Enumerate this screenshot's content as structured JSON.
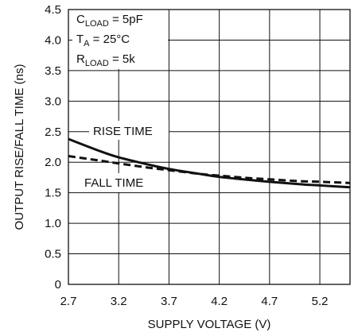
{
  "chart_data": {
    "type": "line",
    "xlabel": "SUPPLY VOLTAGE (V)",
    "ylabel": "OUTPUT RISE/FALL TIME (ns)",
    "xlim": [
      2.7,
      5.5
    ],
    "ylim": [
      0,
      4.5
    ],
    "xticks": [
      "2.7",
      "3.2",
      "3.7",
      "4.2",
      "4.7",
      "5.2"
    ],
    "yticks": [
      "0",
      "0.5",
      "1.0",
      "1.5",
      "2.0",
      "2.5",
      "3.0",
      "3.5",
      "4.0",
      "4.5"
    ],
    "grid": true,
    "conditions": {
      "cload": {
        "main": "C",
        "sub": "LOAD",
        "rest": " = 5pF"
      },
      "ta": {
        "main": "T",
        "sub": "A",
        "rest": " = 25°C"
      },
      "rload": {
        "main": "R",
        "sub": "LOAD",
        "rest": " = 5k"
      }
    },
    "x": [
      2.7,
      3.0,
      3.2,
      3.5,
      3.7,
      4.0,
      4.2,
      4.5,
      4.7,
      5.0,
      5.2,
      5.5
    ],
    "series": [
      {
        "name": "RISE TIME",
        "style": "solid",
        "color": "#111111",
        "values": [
          2.38,
          2.19,
          2.08,
          1.96,
          1.89,
          1.81,
          1.76,
          1.71,
          1.68,
          1.64,
          1.62,
          1.59
        ]
      },
      {
        "name": "FALL TIME",
        "style": "dashed",
        "color": "#111111",
        "values": [
          2.1,
          2.03,
          1.98,
          1.91,
          1.87,
          1.81,
          1.78,
          1.74,
          1.72,
          1.69,
          1.68,
          1.66
        ]
      }
    ]
  }
}
